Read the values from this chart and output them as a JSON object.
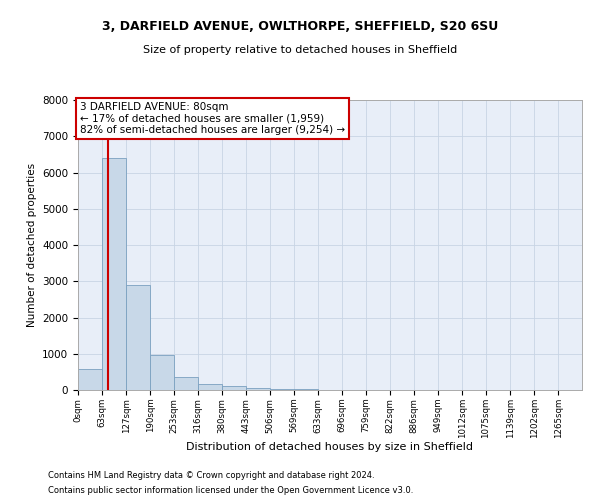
{
  "title1": "3, DARFIELD AVENUE, OWLTHORPE, SHEFFIELD, S20 6SU",
  "title2": "Size of property relative to detached houses in Sheffield",
  "xlabel": "Distribution of detached houses by size in Sheffield",
  "ylabel": "Number of detached properties",
  "footer1": "Contains HM Land Registry data © Crown copyright and database right 2024.",
  "footer2": "Contains public sector information licensed under the Open Government Licence v3.0.",
  "bin_edges": [
    0,
    63,
    127,
    190,
    253,
    316,
    380,
    443,
    506,
    569,
    633,
    696,
    759,
    822,
    886,
    949,
    1012,
    1075,
    1139,
    1202,
    1265
  ],
  "bar_heights": [
    580,
    6400,
    2900,
    960,
    360,
    170,
    105,
    60,
    30,
    15,
    10,
    5,
    4,
    3,
    2,
    2,
    1,
    1,
    1,
    1
  ],
  "bar_color": "#c8d8e8",
  "bar_edge_color": "#7aa0c0",
  "property_size": 80,
  "property_line_color": "#cc0000",
  "annotation_line1": "3 DARFIELD AVENUE: 80sqm",
  "annotation_line2": "← 17% of detached houses are smaller (1,959)",
  "annotation_line3": "82% of semi-detached houses are larger (9,254) →",
  "annotation_box_color": "#cc0000",
  "annotation_bg_color": "#ffffff",
  "ylim": [
    0,
    8000
  ],
  "yticks": [
    0,
    1000,
    2000,
    3000,
    4000,
    5000,
    6000,
    7000,
    8000
  ],
  "grid_color": "#c8d4e4",
  "background_color": "#e8eef8"
}
